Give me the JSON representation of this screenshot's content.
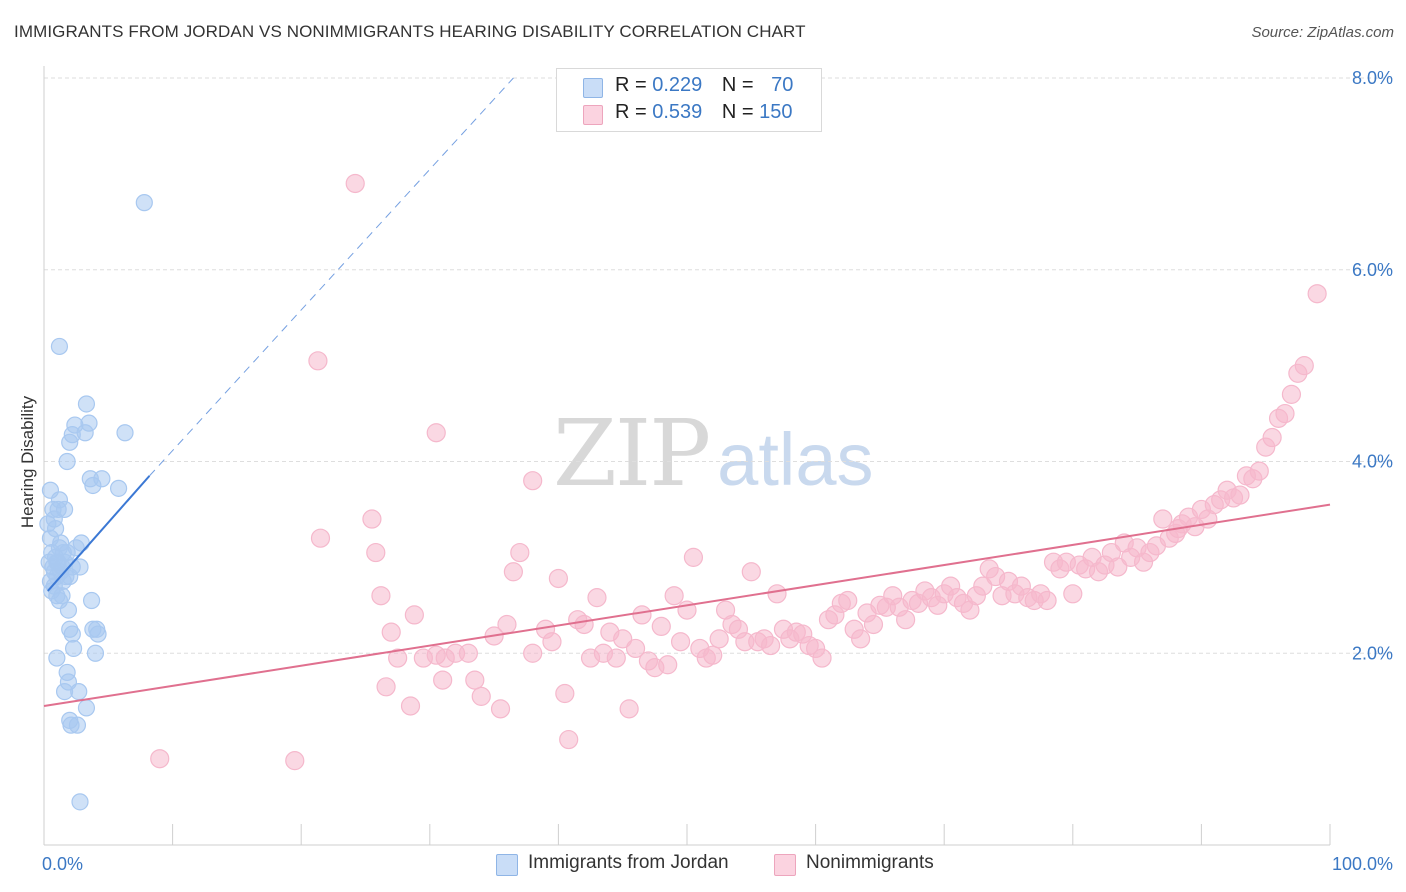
{
  "title": "IMMIGRANTS FROM JORDAN VS NONIMMIGRANTS HEARING DISABILITY CORRELATION CHART",
  "source": "Source: ZipAtlas.com",
  "watermark": {
    "zip": "ZIP",
    "atlas": "atlas"
  },
  "legend": {
    "rows": [
      {
        "r_label": "R = ",
        "r_value": "0.229",
        "n_label": "N = ",
        "n_value": "70",
        "color": "#a8c8f0"
      },
      {
        "r_label": "R = ",
        "r_value": "0.539",
        "n_label": "N = ",
        "n_value": "150",
        "color": "#f5b8cc"
      }
    ]
  },
  "bottom_legend": [
    {
      "label": "Immigrants from Jordan",
      "color": "#a8c8f0"
    },
    {
      "label": "Nonimmigrants",
      "color": "#f5b8cc"
    }
  ],
  "chart_data": {
    "type": "scatter",
    "xlabel": "",
    "ylabel": "Hearing Disability",
    "xlim": [
      0,
      100
    ],
    "ylim": [
      0,
      8
    ],
    "x_tick_labels": [
      {
        "value": 0,
        "label": "0.0%"
      },
      {
        "value": 100,
        "label": "100.0%"
      }
    ],
    "y_tick_labels": [
      {
        "value": 2,
        "label": "2.0%"
      },
      {
        "value": 4,
        "label": "4.0%"
      },
      {
        "value": 6,
        "label": "6.0%"
      },
      {
        "value": 8,
        "label": "8.0%"
      }
    ],
    "x_minor_ticks": [
      10,
      20,
      30,
      40,
      50,
      60,
      70,
      80,
      90,
      100
    ],
    "grid": true,
    "series": [
      {
        "name": "Immigrants from Jordan",
        "color": "#3b78d4",
        "fill": "#a8c8f0",
        "points": [
          [
            0.3,
            3.35
          ],
          [
            0.5,
            3.2
          ],
          [
            0.6,
            3.05
          ],
          [
            0.4,
            2.95
          ],
          [
            0.7,
            2.9
          ],
          [
            0.8,
            2.85
          ],
          [
            0.5,
            2.75
          ],
          [
            0.9,
            3.0
          ],
          [
            1.0,
            2.8
          ],
          [
            1.1,
            2.95
          ],
          [
            1.2,
            3.1
          ],
          [
            1.3,
            2.85
          ],
          [
            1.4,
            2.9
          ],
          [
            1.5,
            3.05
          ],
          [
            1.6,
            2.95
          ],
          [
            1.7,
            2.8
          ],
          [
            0.6,
            2.65
          ],
          [
            0.8,
            2.7
          ],
          [
            1.0,
            2.6
          ],
          [
            1.2,
            2.55
          ],
          [
            0.7,
            3.5
          ],
          [
            0.9,
            3.3
          ],
          [
            1.1,
            3.5
          ],
          [
            1.3,
            3.15
          ],
          [
            1.8,
            3.05
          ],
          [
            2.0,
            2.8
          ],
          [
            2.2,
            2.9
          ],
          [
            2.5,
            3.1
          ],
          [
            2.8,
            2.9
          ],
          [
            0.5,
            3.7
          ],
          [
            1.6,
            3.5
          ],
          [
            1.8,
            4.0
          ],
          [
            2.0,
            4.2
          ],
          [
            2.2,
            4.28
          ],
          [
            2.4,
            4.38
          ],
          [
            1.2,
            5.2
          ],
          [
            3.2,
            4.3
          ],
          [
            3.3,
            4.6
          ],
          [
            3.5,
            4.4
          ],
          [
            3.6,
            3.82
          ],
          [
            3.8,
            3.75
          ],
          [
            5.8,
            3.72
          ],
          [
            6.3,
            4.3
          ],
          [
            4.5,
            3.82
          ],
          [
            7.8,
            6.7
          ],
          [
            1.4,
            2.6
          ],
          [
            1.9,
            2.45
          ],
          [
            3.7,
            2.55
          ],
          [
            2.0,
            2.25
          ],
          [
            2.2,
            2.2
          ],
          [
            3.8,
            2.25
          ],
          [
            4.1,
            2.25
          ],
          [
            4.2,
            2.2
          ],
          [
            2.3,
            2.05
          ],
          [
            4.0,
            2.0
          ],
          [
            1.0,
            1.95
          ],
          [
            1.8,
            1.8
          ],
          [
            1.9,
            1.7
          ],
          [
            1.6,
            1.6
          ],
          [
            2.7,
            1.6
          ],
          [
            2.0,
            1.3
          ],
          [
            2.1,
            1.25
          ],
          [
            2.6,
            1.25
          ],
          [
            3.3,
            1.43
          ],
          [
            2.8,
            0.45
          ],
          [
            1.0,
            2.95
          ],
          [
            1.5,
            2.75
          ],
          [
            2.9,
            3.15
          ],
          [
            1.2,
            3.6
          ],
          [
            0.8,
            3.4
          ]
        ],
        "trend": {
          "solid": [
            [
              0.3,
              2.65
            ],
            [
              8.2,
              3.85
            ]
          ],
          "dashed": [
            [
              8.2,
              3.85
            ],
            [
              36.5,
              8.0
            ]
          ]
        }
      },
      {
        "name": "Nonimmigrants",
        "color": "#e0708f",
        "fill": "#f5b8cc",
        "points": [
          [
            9.0,
            0.9
          ],
          [
            19.5,
            0.88
          ],
          [
            24.2,
            6.9
          ],
          [
            21.3,
            5.05
          ],
          [
            30.5,
            4.3
          ],
          [
            38.0,
            3.8
          ],
          [
            21.5,
            3.2
          ],
          [
            25.5,
            3.4
          ],
          [
            25.8,
            3.05
          ],
          [
            26.2,
            2.6
          ],
          [
            26.6,
            1.65
          ],
          [
            27.0,
            2.22
          ],
          [
            27.5,
            1.95
          ],
          [
            28.5,
            1.45
          ],
          [
            28.8,
            2.4
          ],
          [
            29.5,
            1.95
          ],
          [
            30.5,
            1.98
          ],
          [
            31.0,
            1.72
          ],
          [
            31.2,
            1.95
          ],
          [
            32.0,
            2.0
          ],
          [
            33.0,
            2.0
          ],
          [
            33.5,
            1.72
          ],
          [
            34.0,
            1.55
          ],
          [
            35.0,
            2.18
          ],
          [
            35.5,
            1.42
          ],
          [
            36.0,
            2.3
          ],
          [
            36.5,
            2.85
          ],
          [
            37.0,
            3.05
          ],
          [
            38.0,
            2.0
          ],
          [
            39.0,
            2.25
          ],
          [
            39.5,
            2.12
          ],
          [
            40.0,
            2.78
          ],
          [
            40.5,
            1.58
          ],
          [
            40.8,
            1.1
          ],
          [
            41.5,
            2.35
          ],
          [
            42.0,
            2.3
          ],
          [
            42.5,
            1.95
          ],
          [
            43.0,
            2.58
          ],
          [
            43.5,
            2.0
          ],
          [
            44.0,
            2.22
          ],
          [
            44.5,
            1.95
          ],
          [
            45.0,
            2.15
          ],
          [
            45.5,
            1.42
          ],
          [
            46.0,
            2.05
          ],
          [
            46.5,
            2.4
          ],
          [
            47.0,
            1.92
          ],
          [
            47.5,
            1.85
          ],
          [
            48.0,
            2.28
          ],
          [
            48.5,
            1.88
          ],
          [
            49.0,
            2.6
          ],
          [
            49.5,
            2.12
          ],
          [
            50.0,
            2.45
          ],
          [
            50.5,
            3.0
          ],
          [
            51.0,
            2.05
          ],
          [
            51.5,
            1.95
          ],
          [
            52.0,
            1.98
          ],
          [
            52.5,
            2.15
          ],
          [
            53.0,
            2.45
          ],
          [
            53.5,
            2.3
          ],
          [
            54.0,
            2.25
          ],
          [
            54.5,
            2.12
          ],
          [
            55.0,
            2.85
          ],
          [
            55.5,
            2.12
          ],
          [
            56.0,
            2.15
          ],
          [
            56.5,
            2.08
          ],
          [
            57.0,
            2.62
          ],
          [
            57.5,
            2.25
          ],
          [
            58.0,
            2.15
          ],
          [
            58.5,
            2.22
          ],
          [
            59.0,
            2.2
          ],
          [
            59.5,
            2.08
          ],
          [
            60.0,
            2.05
          ],
          [
            60.5,
            1.95
          ],
          [
            61.0,
            2.35
          ],
          [
            61.5,
            2.4
          ],
          [
            62.0,
            2.52
          ],
          [
            62.5,
            2.55
          ],
          [
            63.0,
            2.25
          ],
          [
            63.5,
            2.15
          ],
          [
            64.0,
            2.42
          ],
          [
            64.5,
            2.3
          ],
          [
            65.0,
            2.5
          ],
          [
            65.5,
            2.48
          ],
          [
            66.0,
            2.6
          ],
          [
            66.5,
            2.48
          ],
          [
            67.0,
            2.35
          ],
          [
            67.5,
            2.55
          ],
          [
            68.0,
            2.52
          ],
          [
            68.5,
            2.65
          ],
          [
            69.0,
            2.58
          ],
          [
            69.5,
            2.5
          ],
          [
            70.0,
            2.62
          ],
          [
            70.5,
            2.7
          ],
          [
            71.0,
            2.58
          ],
          [
            71.5,
            2.52
          ],
          [
            72.0,
            2.45
          ],
          [
            72.5,
            2.6
          ],
          [
            73.0,
            2.7
          ],
          [
            73.5,
            2.88
          ],
          [
            74.0,
            2.8
          ],
          [
            74.5,
            2.6
          ],
          [
            75.0,
            2.75
          ],
          [
            75.5,
            2.62
          ],
          [
            76.0,
            2.7
          ],
          [
            76.5,
            2.58
          ],
          [
            77.0,
            2.55
          ],
          [
            77.5,
            2.62
          ],
          [
            78.0,
            2.55
          ],
          [
            78.5,
            2.95
          ],
          [
            79.0,
            2.88
          ],
          [
            79.5,
            2.95
          ],
          [
            80.0,
            2.62
          ],
          [
            80.5,
            2.92
          ],
          [
            81.0,
            2.88
          ],
          [
            81.5,
            3.0
          ],
          [
            82.0,
            2.85
          ],
          [
            82.5,
            2.92
          ],
          [
            83.0,
            3.05
          ],
          [
            83.5,
            2.9
          ],
          [
            84.0,
            3.15
          ],
          [
            84.5,
            3.0
          ],
          [
            85.0,
            3.1
          ],
          [
            85.5,
            2.95
          ],
          [
            86.0,
            3.05
          ],
          [
            86.5,
            3.12
          ],
          [
            87.0,
            3.4
          ],
          [
            87.5,
            3.2
          ],
          [
            88.0,
            3.25
          ],
          [
            88.5,
            3.35
          ],
          [
            89.0,
            3.42
          ],
          [
            89.5,
            3.32
          ],
          [
            90.0,
            3.5
          ],
          [
            90.5,
            3.4
          ],
          [
            91.0,
            3.55
          ],
          [
            91.5,
            3.6
          ],
          [
            92.0,
            3.7
          ],
          [
            92.5,
            3.62
          ],
          [
            93.0,
            3.65
          ],
          [
            93.5,
            3.85
          ],
          [
            94.0,
            3.82
          ],
          [
            94.5,
            3.9
          ],
          [
            95.0,
            4.15
          ],
          [
            95.5,
            4.25
          ],
          [
            96.0,
            4.45
          ],
          [
            96.5,
            4.5
          ],
          [
            97.0,
            4.7
          ],
          [
            97.5,
            4.92
          ],
          [
            98.0,
            5.0
          ],
          [
            99.0,
            5.75
          ],
          [
            88.2,
            3.3
          ]
        ],
        "trend": {
          "solid": [
            [
              0,
              1.45
            ],
            [
              100,
              3.55
            ]
          ]
        }
      }
    ]
  }
}
